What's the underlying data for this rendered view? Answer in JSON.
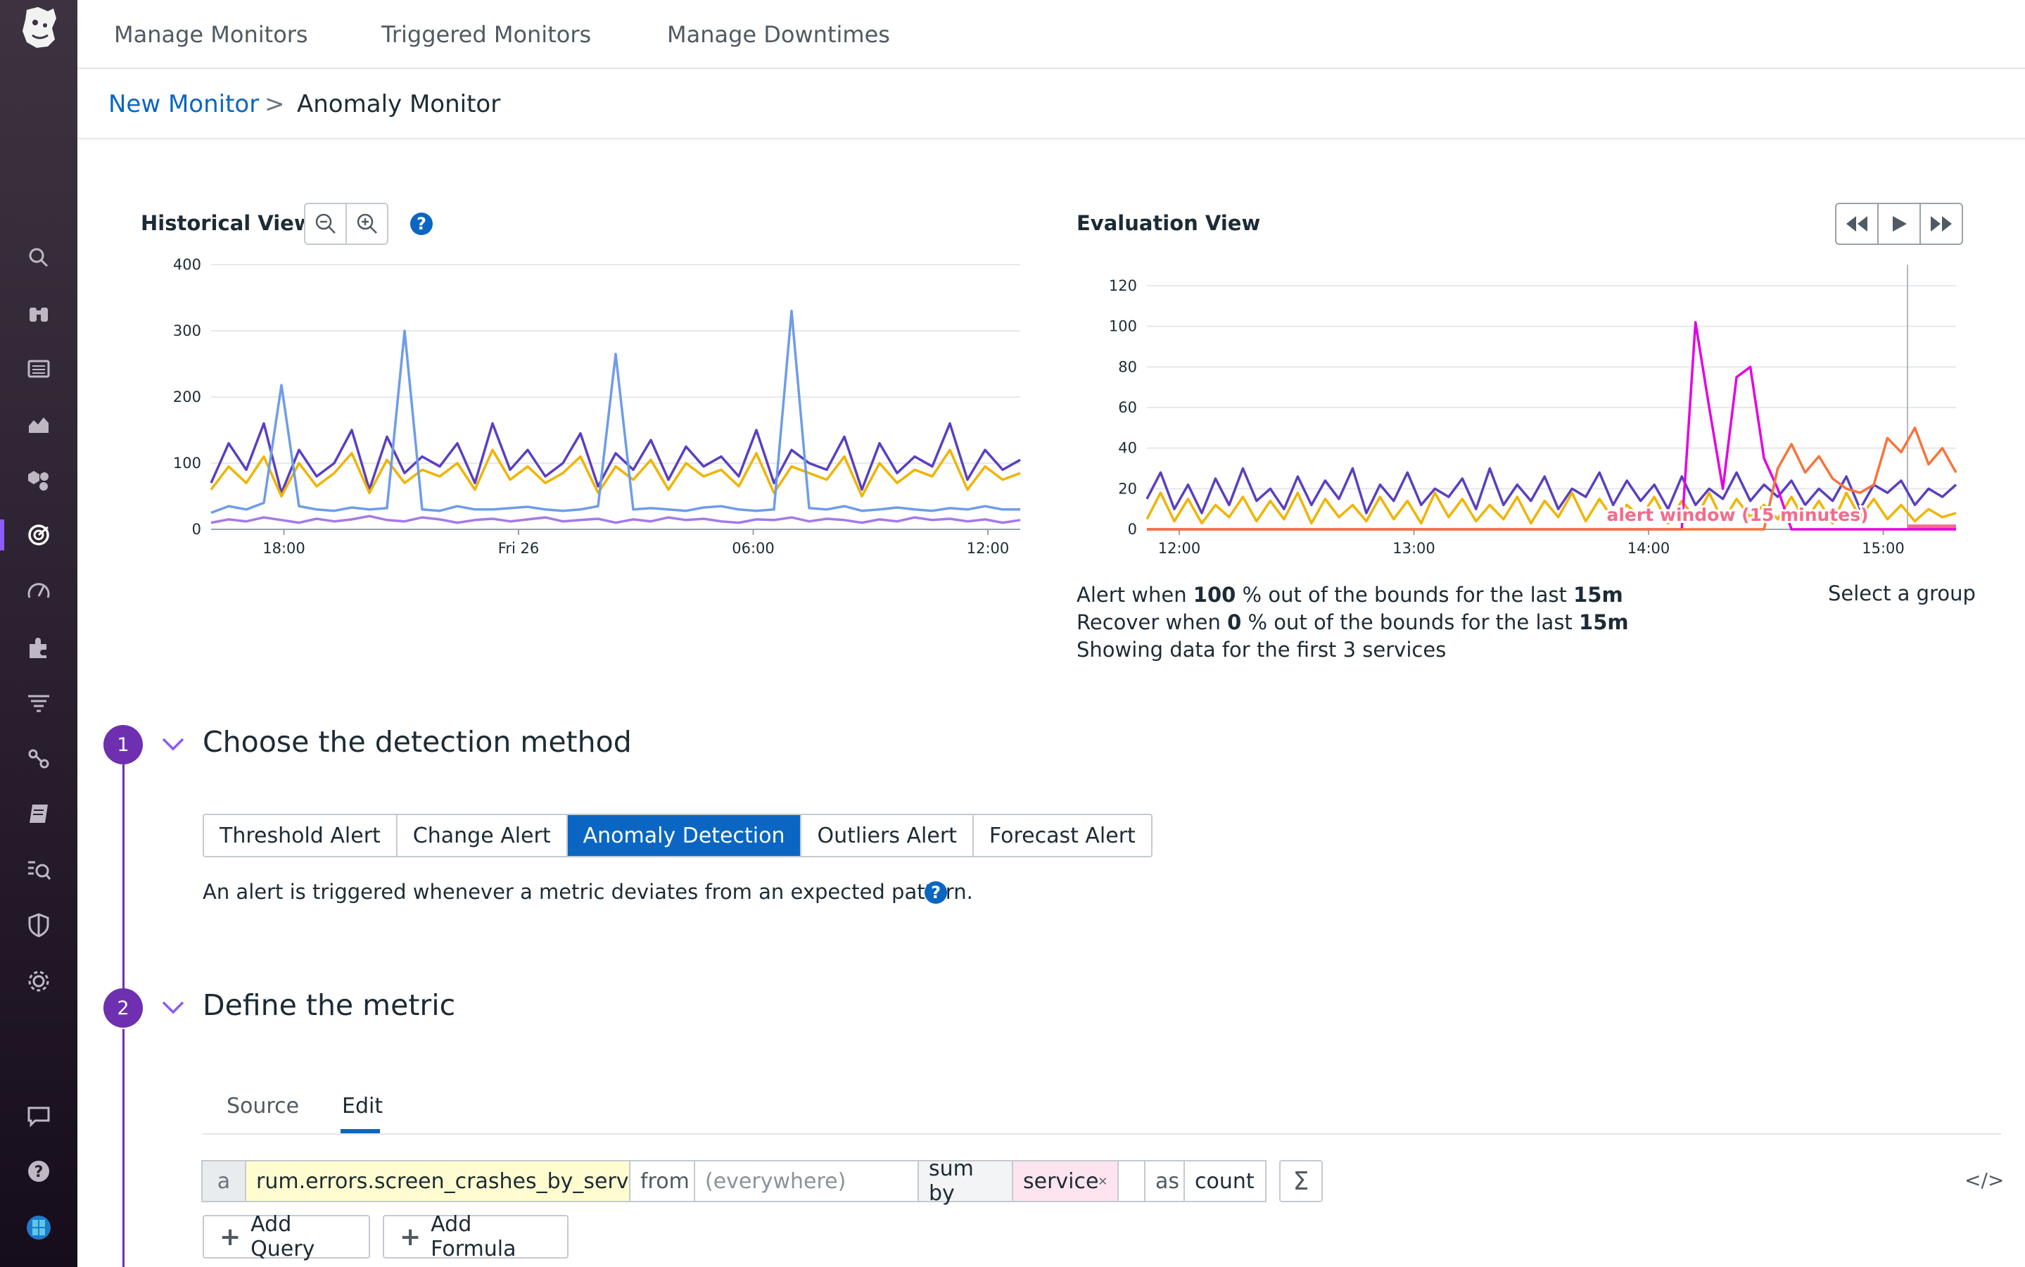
{
  "top_nav": {
    "items": [
      "Manage Monitors",
      "Triggered Monitors",
      "Manage Downtimes"
    ]
  },
  "breadcrumb": {
    "parent": "New Monitor",
    "separator": ">",
    "current": "Anomaly Monitor"
  },
  "historical": {
    "title": "Historical View",
    "help": "?"
  },
  "evaluation": {
    "title": "Evaluation View",
    "select_group": "Select a group",
    "line1": {
      "pre": "Alert when ",
      "pct": "100",
      "mid": " % out of the bounds for the last ",
      "win": "15m"
    },
    "line2": {
      "pre": "Recover when ",
      "pct": "0",
      "mid": " % out of the bounds for the last ",
      "win": "15m"
    },
    "line3": "Showing data for the first 3 services"
  },
  "chart_data": [
    {
      "type": "line",
      "title": "Historical View",
      "x_ticks": [
        "18:00",
        "Fri 26",
        "06:00",
        "12:00"
      ],
      "y_ticks": [
        "0",
        "100",
        "200",
        "300",
        "400"
      ],
      "ylim": [
        0,
        400
      ],
      "series": [
        {
          "color": "#5a3fc0",
          "values": [
            70,
            130,
            90,
            160,
            55,
            120,
            80,
            100,
            150,
            60,
            140,
            85,
            110,
            95,
            130,
            70,
            160,
            90,
            120,
            80,
            100,
            145,
            65,
            115,
            90,
            135,
            75,
            125,
            95,
            110,
            80,
            150,
            70,
            120,
            100,
            90,
            140,
            60,
            130,
            85,
            110,
            95,
            160,
            75,
            120,
            90,
            105
          ]
        },
        {
          "color": "#f0b400",
          "values": [
            60,
            95,
            70,
            110,
            50,
            100,
            65,
            85,
            115,
            55,
            105,
            70,
            90,
            80,
            100,
            60,
            120,
            75,
            95,
            70,
            85,
            110,
            55,
            95,
            75,
            105,
            60,
            100,
            80,
            90,
            65,
            115,
            55,
            95,
            85,
            75,
            110,
            50,
            100,
            70,
            90,
            80,
            120,
            60,
            95,
            75,
            85
          ]
        },
        {
          "color": "#6f9ce8",
          "values": [
            25,
            35,
            30,
            40,
            218,
            35,
            30,
            28,
            33,
            30,
            32,
            300,
            30,
            28,
            35,
            30,
            30,
            32,
            34,
            30,
            28,
            30,
            35,
            265,
            30,
            32,
            30,
            28,
            33,
            35,
            30,
            28,
            30,
            330,
            32,
            30,
            35,
            28,
            30,
            33,
            30,
            28,
            32,
            30,
            35,
            30,
            30
          ]
        },
        {
          "color": "#a678e8",
          "values": [
            10,
            15,
            12,
            18,
            14,
            10,
            16,
            12,
            15,
            20,
            14,
            12,
            18,
            15,
            10,
            14,
            16,
            12,
            15,
            18,
            12,
            14,
            16,
            10,
            15,
            12,
            18,
            14,
            16,
            12,
            10,
            15,
            14,
            18,
            12,
            16,
            14,
            10,
            15,
            12,
            18,
            14,
            16,
            12,
            15,
            10,
            14
          ]
        }
      ]
    },
    {
      "type": "line",
      "title": "Evaluation View",
      "x_ticks": [
        "12:00",
        "13:00",
        "14:00",
        "15:00"
      ],
      "y_ticks": [
        "0",
        "20",
        "40",
        "60",
        "80",
        "100",
        "120"
      ],
      "ylim": [
        0,
        120
      ],
      "annotation": "alert window (15 minutes)",
      "series": [
        {
          "color": "#5a3fc0",
          "values": [
            15,
            28,
            10,
            22,
            8,
            25,
            12,
            30,
            14,
            20,
            10,
            26,
            12,
            24,
            15,
            30,
            8,
            22,
            14,
            28,
            12,
            20,
            16,
            25,
            10,
            30,
            12,
            22,
            14,
            26,
            10,
            20,
            16,
            28,
            12,
            24,
            14,
            22,
            10,
            26,
            12,
            20,
            15,
            28,
            14,
            22,
            16,
            24,
            12,
            20,
            14,
            26,
            10,
            22,
            18,
            24,
            12,
            20,
            16,
            22
          ]
        },
        {
          "color": "#f0b400",
          "values": [
            5,
            18,
            4,
            15,
            3,
            12,
            6,
            16,
            4,
            14,
            5,
            18,
            3,
            15,
            6,
            12,
            4,
            16,
            5,
            14,
            3,
            18,
            6,
            15,
            4,
            12,
            5,
            16,
            3,
            14,
            6,
            18,
            4,
            15,
            5,
            12,
            6,
            16,
            3,
            14,
            5,
            18,
            4,
            15,
            6,
            12,
            5,
            16,
            4,
            14,
            3,
            18,
            6,
            15,
            5,
            12,
            4,
            10,
            6,
            8
          ]
        },
        {
          "color": "#e400e4",
          "values": [
            0,
            0,
            0,
            0,
            0,
            0,
            0,
            0,
            0,
            0,
            0,
            0,
            0,
            0,
            0,
            0,
            0,
            0,
            0,
            0,
            0,
            0,
            0,
            0,
            0,
            0,
            0,
            0,
            0,
            0,
            0,
            0,
            0,
            0,
            0,
            0,
            0,
            0,
            0,
            0,
            102,
            60,
            20,
            75,
            80,
            35,
            20,
            0,
            0,
            0,
            0,
            0,
            0,
            0,
            0,
            0,
            0,
            0,
            0,
            0
          ]
        },
        {
          "color": "#f7743a",
          "values": [
            0,
            0,
            0,
            0,
            0,
            0,
            0,
            0,
            0,
            0,
            0,
            0,
            0,
            0,
            0,
            0,
            0,
            0,
            0,
            0,
            0,
            0,
            0,
            0,
            0,
            0,
            0,
            0,
            0,
            0,
            0,
            0,
            0,
            0,
            0,
            0,
            0,
            0,
            0,
            0,
            0,
            0,
            0,
            0,
            0,
            0,
            30,
            42,
            28,
            36,
            25,
            20,
            18,
            22,
            45,
            38,
            50,
            32,
            40,
            28
          ]
        }
      ]
    }
  ],
  "step1": {
    "number": "1",
    "title": "Choose the detection method",
    "methods": [
      "Threshold Alert",
      "Change Alert",
      "Anomaly Detection",
      "Outliers Alert",
      "Forecast Alert"
    ],
    "selected": "Anomaly Detection",
    "description": "An alert is triggered whenever a metric deviates from an expected pattern."
  },
  "step2": {
    "number": "2",
    "title": "Define the metric",
    "tabs": [
      "Source",
      "Edit"
    ],
    "active_tab": "Edit",
    "query": {
      "letter": "a",
      "metric": "rum.errors.screen_crashes_by_service",
      "from_label": "from",
      "from_placeholder": "(everywhere)",
      "sum_by_label": "sum by",
      "group_tag": "service",
      "as_label": "as",
      "as_value": "count",
      "sigma": "Σ",
      "code": "</>"
    },
    "add_query": "Add Query",
    "add_formula": "Add Formula"
  },
  "icons": [
    "datadog-logo-icon",
    "search-icon",
    "binoculars-icon",
    "list-icon",
    "chart-icon",
    "infrastructure-icon",
    "monitors-icon",
    "apm-icon",
    "integrations-icon",
    "logs-icon",
    "cicd-icon",
    "notebook-icon",
    "security-icon",
    "shield-icon",
    "settings-icon",
    "chat-icon",
    "help-icon",
    "user-icon"
  ]
}
